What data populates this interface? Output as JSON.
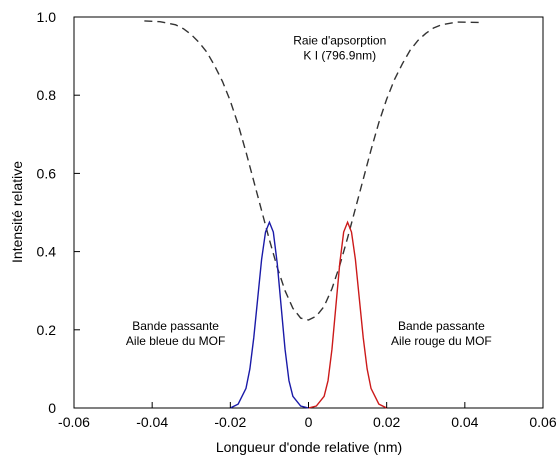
{
  "chart_data": {
    "type": "line",
    "title": "",
    "xlabel": "Longueur d'onde relative (nm)",
    "ylabel": "Intensité relative",
    "xlim": [
      -0.06,
      0.06
    ],
    "ylim": [
      0,
      1.0
    ],
    "x_ticks": [
      -0.06,
      -0.04,
      -0.02,
      0,
      0.02,
      0.04,
      0.06
    ],
    "x_tick_labels": [
      "-0.06",
      "-0.04",
      "-0.02",
      "0",
      "0.02",
      "0.04",
      "0.06"
    ],
    "y_ticks": [
      0,
      0.2,
      0.4,
      0.6,
      0.8,
      1.0
    ],
    "y_tick_labels": [
      "0",
      "0.2",
      "0.4",
      "0.6",
      "0.8",
      "1.0"
    ],
    "grid": false,
    "series": [
      {
        "color": "#333333",
        "style": "dashed",
        "x": [
          -0.042,
          -0.038,
          -0.034,
          -0.032,
          -0.03,
          -0.028,
          -0.026,
          -0.024,
          -0.022,
          -0.02,
          -0.018,
          -0.016,
          -0.014,
          -0.012,
          -0.01,
          -0.008,
          -0.006,
          -0.004,
          -0.002,
          0.0,
          0.002,
          0.004,
          0.006,
          0.008,
          0.01,
          0.012,
          0.014,
          0.016,
          0.018,
          0.02,
          0.022,
          0.024,
          0.026,
          0.028,
          0.03,
          0.032,
          0.034,
          0.038,
          0.044
        ],
        "y": [
          0.99,
          0.988,
          0.98,
          0.97,
          0.955,
          0.935,
          0.91,
          0.875,
          0.835,
          0.785,
          0.725,
          0.655,
          0.58,
          0.505,
          0.43,
          0.36,
          0.3,
          0.255,
          0.23,
          0.225,
          0.235,
          0.26,
          0.305,
          0.365,
          0.435,
          0.51,
          0.585,
          0.66,
          0.73,
          0.79,
          0.84,
          0.88,
          0.915,
          0.94,
          0.958,
          0.972,
          0.98,
          0.987,
          0.986
        ]
      },
      {
        "color": "#1a1aa8",
        "style": "solid",
        "x": [
          -0.02,
          -0.018,
          -0.016,
          -0.015,
          -0.014,
          -0.013,
          -0.012,
          -0.011,
          -0.01,
          -0.009,
          -0.008,
          -0.007,
          -0.006,
          -0.005,
          -0.004,
          -0.002,
          0.0
        ],
        "y": [
          0.0,
          0.01,
          0.05,
          0.1,
          0.18,
          0.28,
          0.38,
          0.45,
          0.475,
          0.45,
          0.37,
          0.26,
          0.15,
          0.07,
          0.03,
          0.005,
          0.0
        ]
      },
      {
        "color": "#cc1a1a",
        "style": "solid",
        "x": [
          0.0,
          0.002,
          0.004,
          0.005,
          0.006,
          0.007,
          0.008,
          0.009,
          0.01,
          0.011,
          0.012,
          0.013,
          0.014,
          0.015,
          0.016,
          0.018,
          0.02
        ],
        "y": [
          0.0,
          0.005,
          0.03,
          0.07,
          0.15,
          0.26,
          0.37,
          0.45,
          0.475,
          0.45,
          0.38,
          0.28,
          0.18,
          0.1,
          0.05,
          0.01,
          0.0
        ]
      }
    ],
    "annotations": [
      {
        "id": "absorption",
        "lines": [
          "Raie d'apsorption",
          "K I (796.9nm)"
        ],
        "x": 0.008,
        "y": 0.93
      },
      {
        "id": "blue",
        "lines": [
          "Bande passante",
          "Aile bleue du MOF"
        ],
        "x": -0.034,
        "y": 0.2
      },
      {
        "id": "red",
        "lines": [
          "Bande passante",
          "Aile rouge du MOF"
        ],
        "x": 0.034,
        "y": 0.2
      }
    ]
  }
}
